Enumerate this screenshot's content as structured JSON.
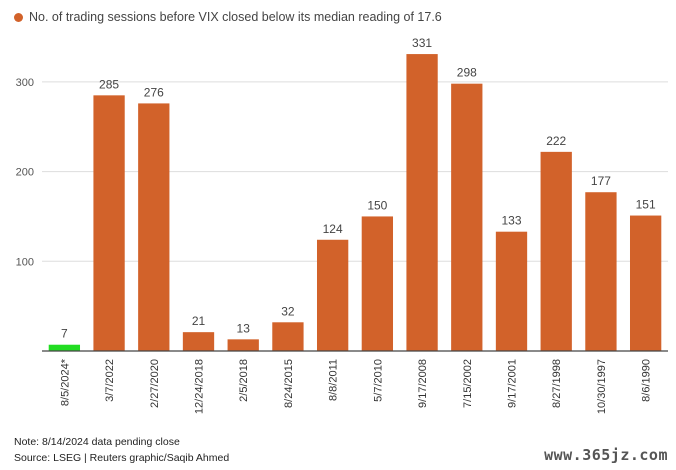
{
  "legend": {
    "label": "No. of trading sessions before VIX closed below its median reading of 17.6"
  },
  "colors": {
    "bar": "#d2622a",
    "highlight": "#22dd22",
    "grid": "#dddddd",
    "axis": "#444444"
  },
  "chart_data": {
    "type": "bar",
    "categories": [
      "8/5/2024*",
      "3/7/2022",
      "2/27/2020",
      "12/24/2018",
      "2/5/2018",
      "8/24/2015",
      "8/8/2011",
      "5/7/2010",
      "9/17/2008",
      "7/15/2002",
      "9/17/2001",
      "8/27/1998",
      "10/30/1997",
      "8/6/1990"
    ],
    "values": [
      7,
      285,
      276,
      21,
      13,
      32,
      124,
      150,
      331,
      298,
      133,
      222,
      177,
      151
    ],
    "highlight_index": 0,
    "yticks": [
      100,
      200,
      300
    ],
    "ylim": [
      0,
      340
    ],
    "grid": true,
    "legend_position": "top-left"
  },
  "notes": {
    "line1": "Note: 8/14/2024 data pending close",
    "line2": "Source: LSEG | Reuters graphic/Saqib Ahmed"
  },
  "watermark": "www.365jz.com"
}
